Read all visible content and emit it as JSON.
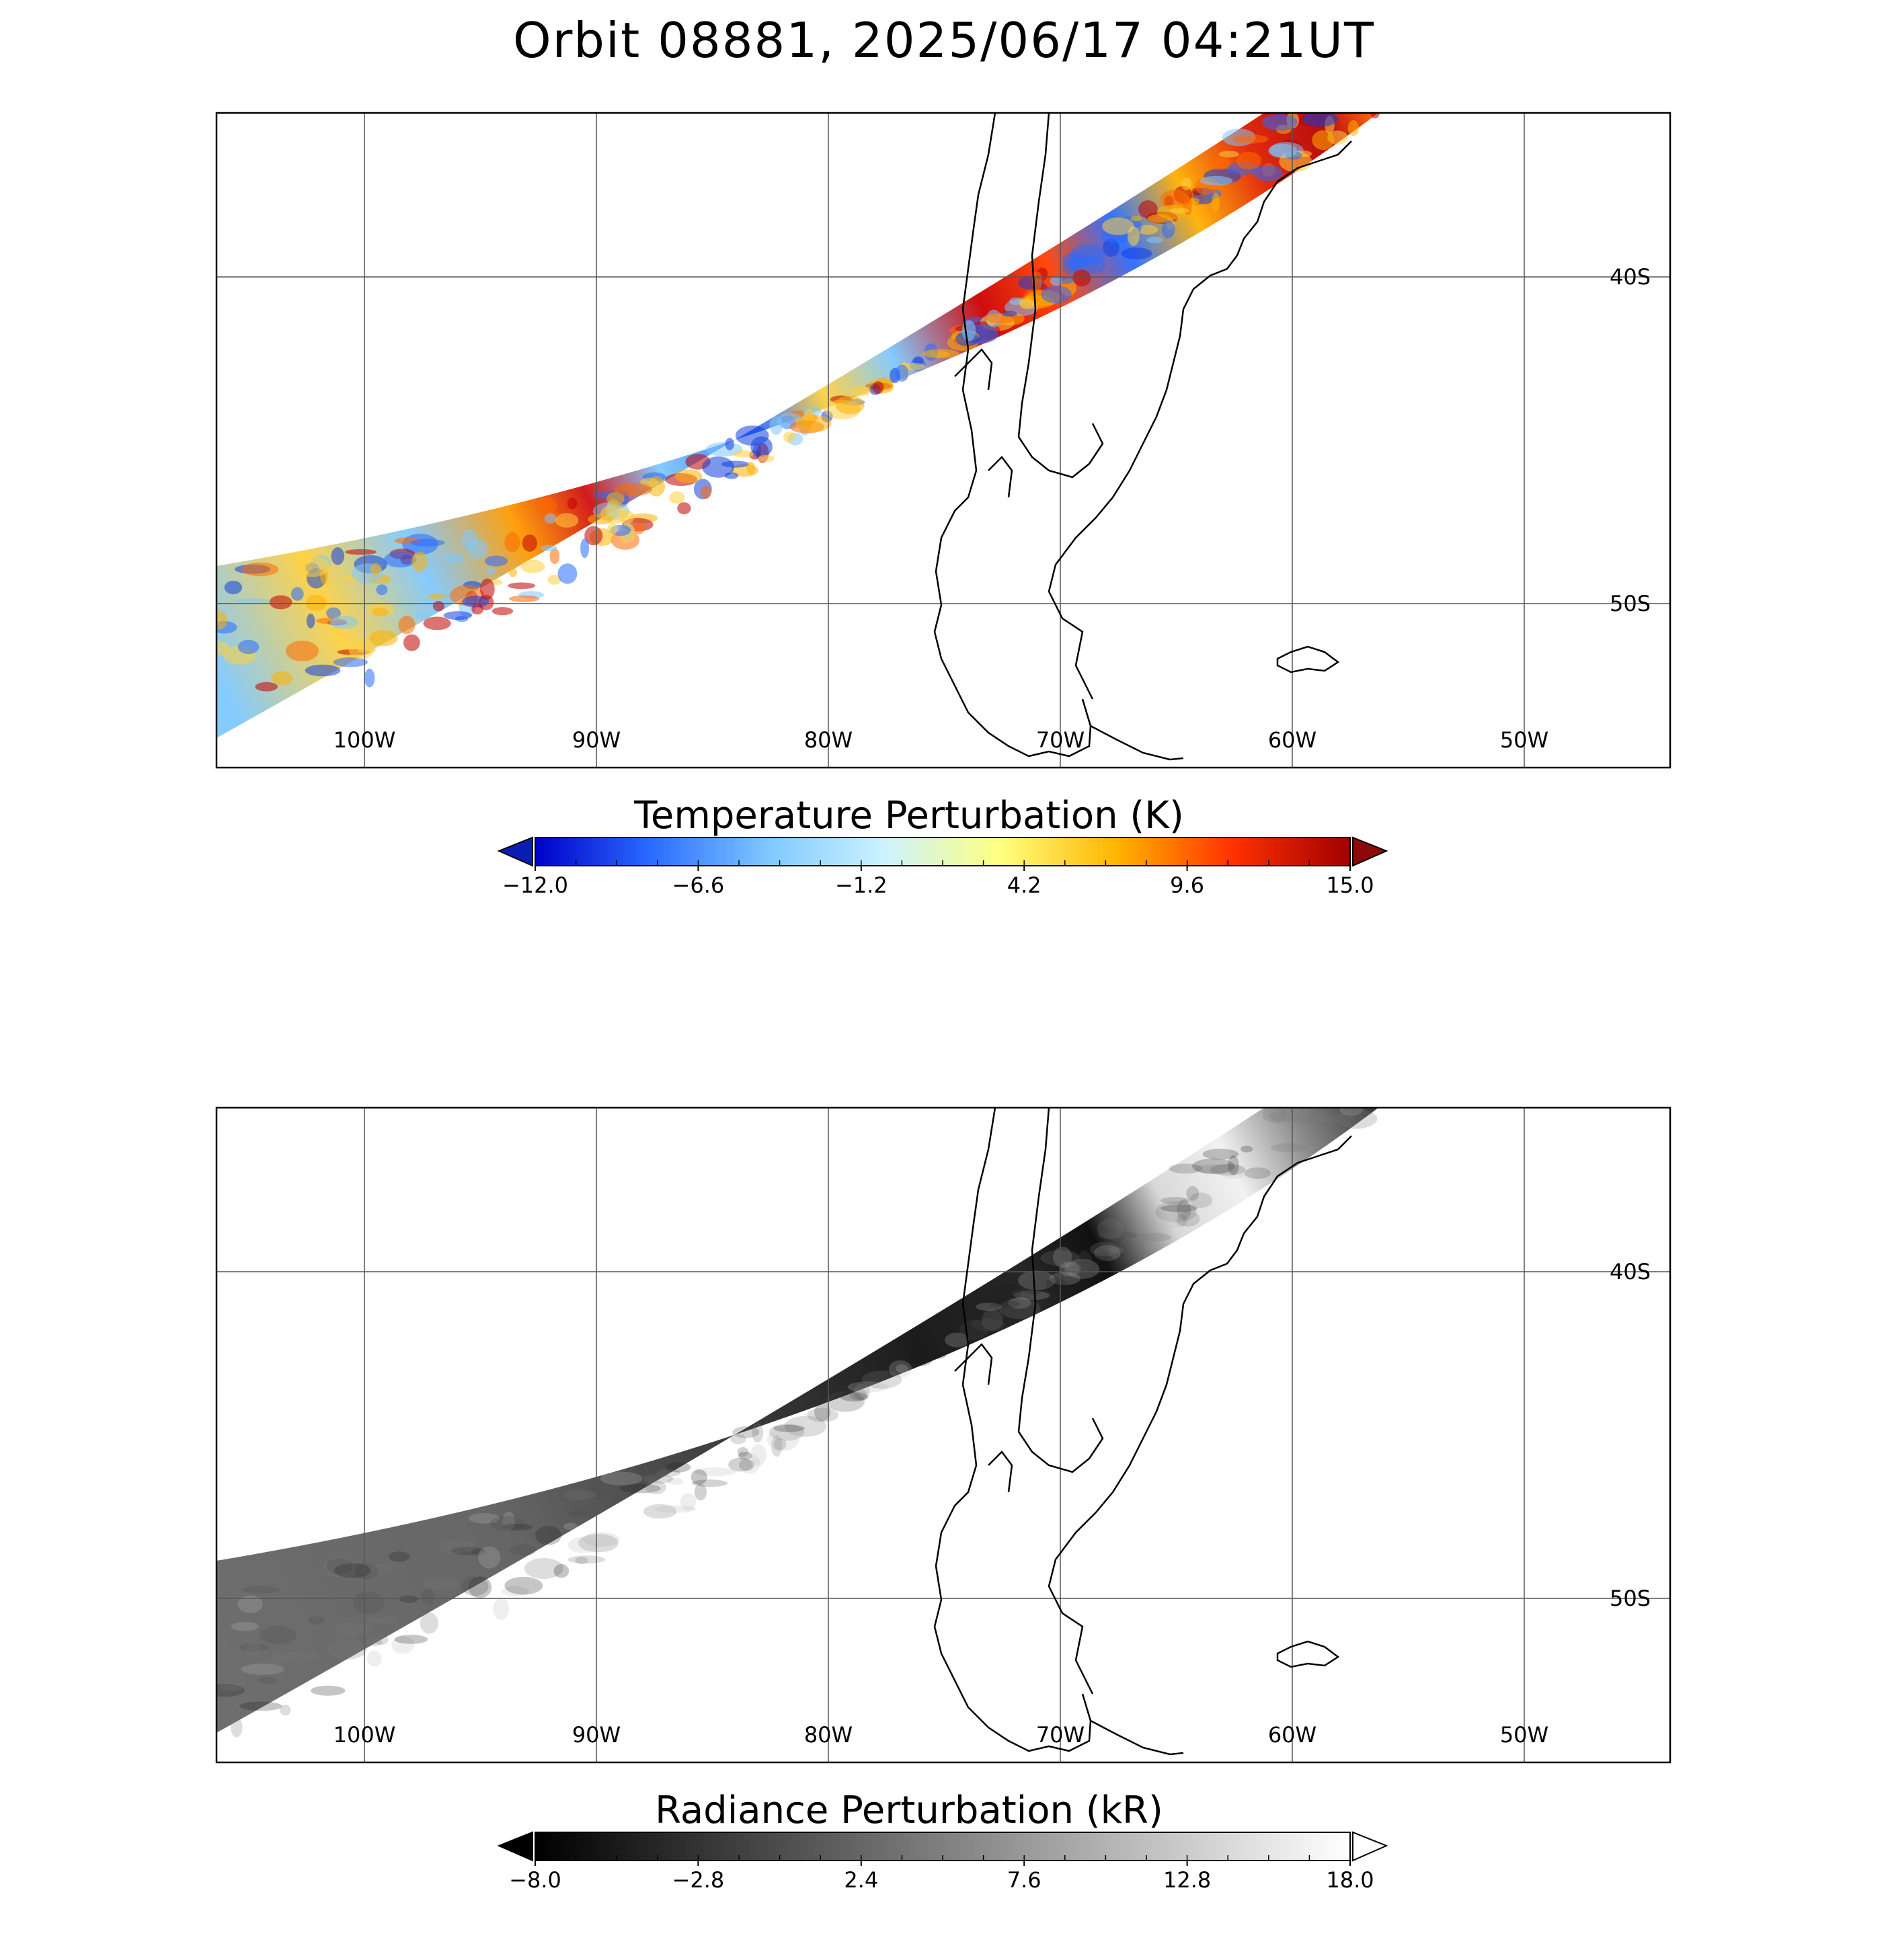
{
  "title": "Orbit 08881, 2025/06/17 04:21UT",
  "map": {
    "lon_ticks": [
      "100W",
      "90W",
      "80W",
      "70W",
      "60W",
      "50W"
    ],
    "lat_ticks": [
      "40S",
      "50S"
    ],
    "lon_range": [
      -106.5,
      -43.5
    ],
    "lat_range": [
      -35,
      -55
    ]
  },
  "panels": [
    {
      "id": "temperature",
      "colorbar": {
        "label": "Temperature Perturbation (K)",
        "ticks": [
          "−12.0",
          "−6.6",
          "−1.2",
          "4.2",
          "9.6",
          "15.0"
        ],
        "range": [
          -12.0,
          15.0
        ],
        "colors": [
          "#0000c8",
          "#2a6cff",
          "#7fc8ff",
          "#cdf3ff",
          "#ffff80",
          "#ffb400",
          "#ff3000",
          "#a00000"
        ],
        "under_color": "#0a1eb4",
        "over_color": "#8c0a0a"
      }
    },
    {
      "id": "radiance",
      "colorbar": {
        "label": "Radiance Perturbation (kR)",
        "ticks": [
          "−8.0",
          "−2.8",
          "2.4",
          "7.6",
          "12.8",
          "18.0"
        ],
        "range": [
          -8.0,
          18.0
        ],
        "colors": [
          "#000000",
          "#ffffff"
        ],
        "under_color": "#000000",
        "over_color": "#ffffff"
      }
    }
  ]
}
